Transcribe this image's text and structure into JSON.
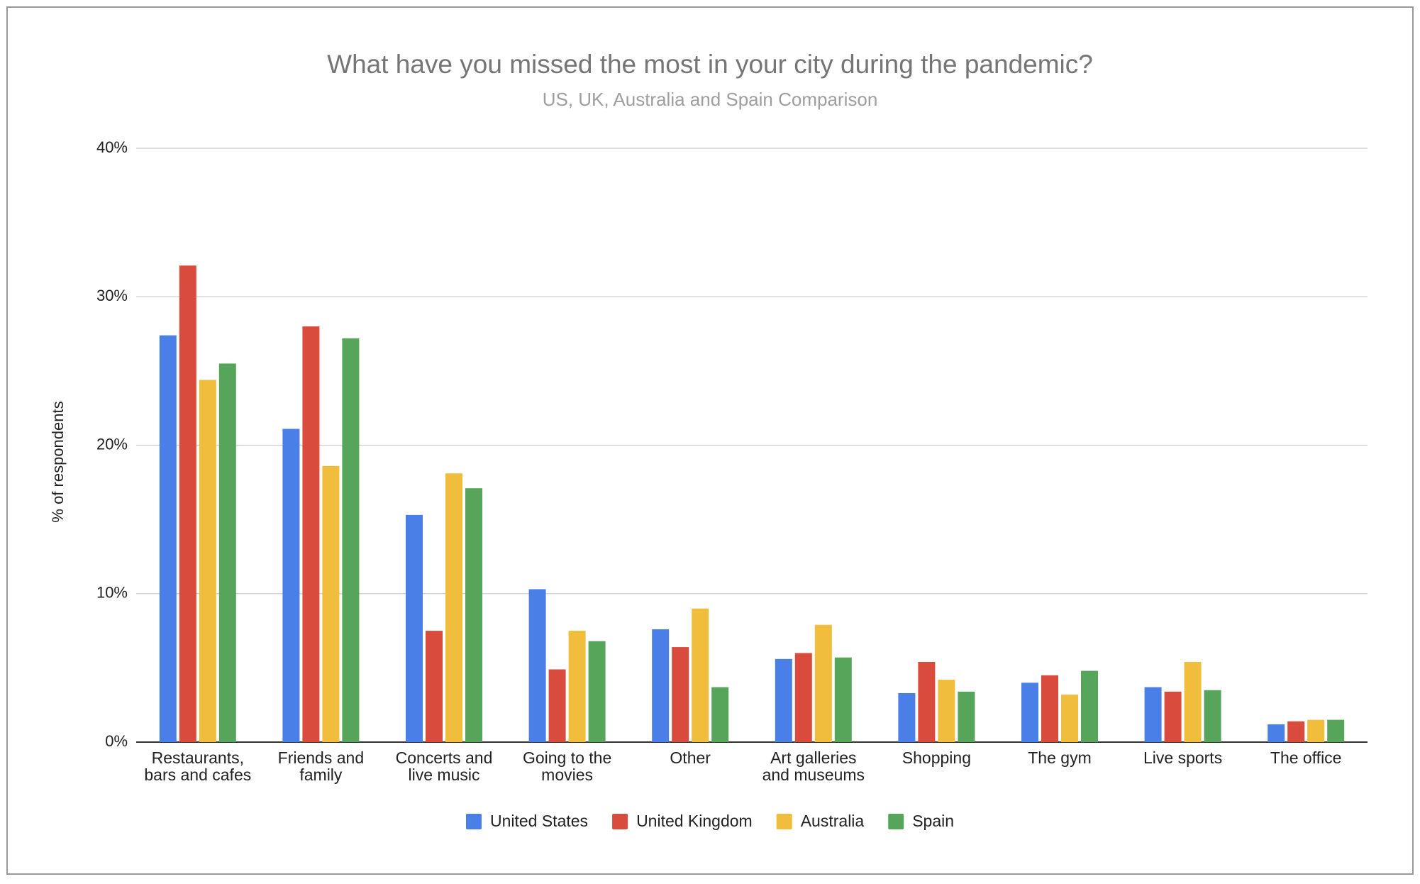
{
  "chart_data": {
    "type": "bar",
    "title": "What have you missed the most in your city during the pandemic?",
    "subtitle": "US, UK, Australia and Spain Comparison",
    "y_label": "% of respondents",
    "categories": [
      "Restaurants, bars and cafes",
      "Friends and family",
      "Concerts and live music",
      "Going to the movies",
      "Other",
      "Art galleries and museums",
      "Shopping",
      "The gym",
      "Live sports",
      "The office"
    ],
    "series": [
      {
        "name": "United States",
        "color": "#4a7fe8",
        "values": [
          27.4,
          21.1,
          15.3,
          10.3,
          7.6,
          5.6,
          3.3,
          4.0,
          3.7,
          1.2
        ]
      },
      {
        "name": "United Kingdom",
        "color": "#d94c3d",
        "values": [
          32.1,
          28.0,
          7.5,
          4.9,
          6.4,
          6.0,
          5.4,
          4.5,
          3.4,
          1.4
        ]
      },
      {
        "name": "Australia",
        "color": "#f0bd3c",
        "values": [
          24.4,
          18.6,
          18.1,
          7.5,
          9.0,
          7.9,
          4.2,
          3.2,
          5.4,
          1.5
        ]
      },
      {
        "name": "Spain",
        "color": "#57a55a",
        "values": [
          25.5,
          27.2,
          17.1,
          6.8,
          3.7,
          5.7,
          3.4,
          4.8,
          3.5,
          1.5
        ]
      }
    ],
    "ylim": [
      0,
      40
    ],
    "yticks": [
      {
        "value": 0,
        "label": "0%"
      },
      {
        "value": 10,
        "label": "10%"
      },
      {
        "value": 20,
        "label": "20%"
      },
      {
        "value": 30,
        "label": "30%"
      },
      {
        "value": 40,
        "label": "40%"
      }
    ],
    "grid": true,
    "legend": "bottom"
  }
}
